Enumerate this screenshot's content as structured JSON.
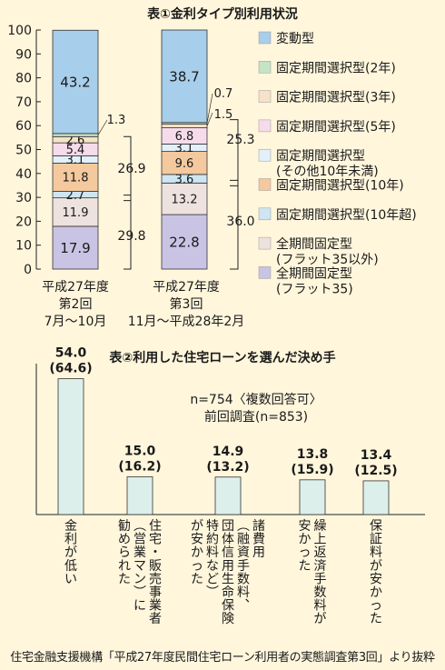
{
  "chart_data": [
    {
      "type": "bar",
      "title": "表①金利タイプ別利用状況",
      "stacked": true,
      "ylim": [
        0,
        100
      ],
      "yticks": [
        0,
        10,
        20,
        30,
        40,
        50,
        60,
        70,
        80,
        90,
        100
      ],
      "columns": [
        {
          "label_lines": [
            "平成27年度",
            "第2回",
            "7月〜10月"
          ]
        },
        {
          "label_lines": [
            "平成27年度",
            "第3回",
            "11月〜平成28年2月"
          ]
        }
      ],
      "series": [
        {
          "name": "全期間固定型\n(フラット35)",
          "color": "#C9C4E4",
          "values": [
            17.9,
            22.8
          ]
        },
        {
          "name": "全期間固定型\n(フラット35以外)",
          "color": "#EEE2DE",
          "values": [
            11.9,
            13.2
          ]
        },
        {
          "name": "固定期間選択型(10年超)",
          "color": "#CDE6F2",
          "values": [
            2.7,
            3.6
          ]
        },
        {
          "name": "固定期間選択型(10年)",
          "color": "#F4C99E",
          "values": [
            11.8,
            9.6
          ]
        },
        {
          "name": "固定期間選択型\n(その他10年未満)",
          "color": "#E2F0FA",
          "values": [
            3.1,
            3.1
          ]
        },
        {
          "name": "固定期間選択型(5年)",
          "color": "#F6DCEA",
          "values": [
            5.4,
            6.8
          ]
        },
        {
          "name": "固定期間選択型(3年)",
          "color": "#F6E2C8",
          "values": [
            2.6,
            1.5
          ]
        },
        {
          "name": "固定期間選択型(2年)",
          "color": "#C6E3C6",
          "values": [
            1.3,
            0.7
          ]
        },
        {
          "name": "変動型",
          "color": "#A7CEEA",
          "values": [
            43.2,
            38.7
          ]
        }
      ],
      "annotations": [
        {
          "text": "26.9"
        },
        {
          "text": "29.8"
        },
        {
          "text": "25.3"
        },
        {
          "text": "36.0"
        }
      ]
    },
    {
      "type": "bar",
      "title": "表②利用した住宅ローンを選んだ決め手",
      "note_lines": [
        "n=754〈複数回答可〉",
        "前回調査(n=853)"
      ],
      "ylim": [
        0,
        60
      ],
      "bar_color": "#DCEFEB",
      "categories": [
        {
          "lines": [
            "金利が低い"
          ]
        },
        {
          "lines": [
            "住宅・販売事業者",
            "（営業マン）に",
            "勧められた"
          ]
        },
        {
          "lines": [
            "諸費用",
            "（融資手数料、",
            "団体信用生命保険",
            "特約料など）",
            "が安かった"
          ]
        },
        {
          "lines": [
            "繰上返済手数料が",
            "安かった"
          ]
        },
        {
          "lines": [
            "保証料が安かった"
          ]
        }
      ],
      "values": [
        54.0,
        15.0,
        14.9,
        13.8,
        13.4
      ],
      "value_labels": [
        "54.0",
        "15.0",
        "14.9",
        "13.8",
        "13.4"
      ],
      "previous_labels": [
        "(64.6)",
        "(16.2)",
        "(13.2)",
        "(15.9)",
        "(12.5)"
      ]
    }
  ],
  "source_text": "住宅金融支援機構「平成27年度民間住宅ローン利用者の実態調査第3回」より抜粋"
}
